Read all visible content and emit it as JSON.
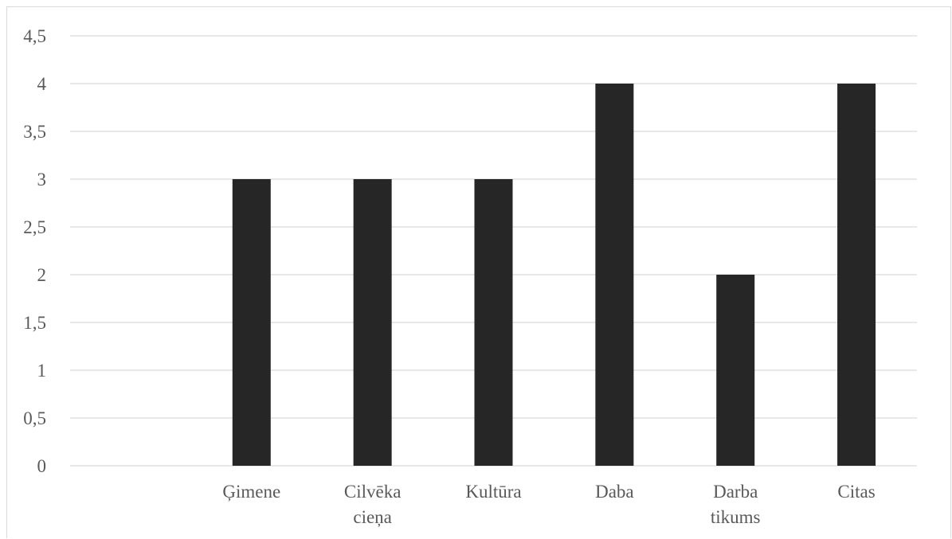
{
  "chart_data": {
    "type": "bar",
    "categories": [
      "",
      "Ģimene",
      "Cilvēka cieņa",
      "Kultūra",
      "Daba",
      "Darba tikums",
      "Citas"
    ],
    "category_lines": [
      [
        ""
      ],
      [
        "Ģimene"
      ],
      [
        "Cilvēka",
        "cieņa"
      ],
      [
        "Kultūra"
      ],
      [
        "Daba"
      ],
      [
        "Darba",
        "tikums"
      ],
      [
        "Citas"
      ]
    ],
    "values": [
      0,
      3,
      3,
      3,
      4,
      2,
      4
    ],
    "ylim": [
      0,
      4.5
    ],
    "yticks": [
      0,
      0.5,
      1,
      1.5,
      2,
      2.5,
      3,
      3.5,
      4,
      4.5
    ],
    "ytick_labels": [
      "0",
      "0,5",
      "1",
      "1,5",
      "2",
      "2,5",
      "3",
      "3,5",
      "4",
      "4,5"
    ],
    "grid": true,
    "legend": "none",
    "bar_color": "#262626",
    "grid_color": "#d9d9d9",
    "label_color": "#595959",
    "title": "",
    "xlabel": "",
    "ylabel": ""
  }
}
